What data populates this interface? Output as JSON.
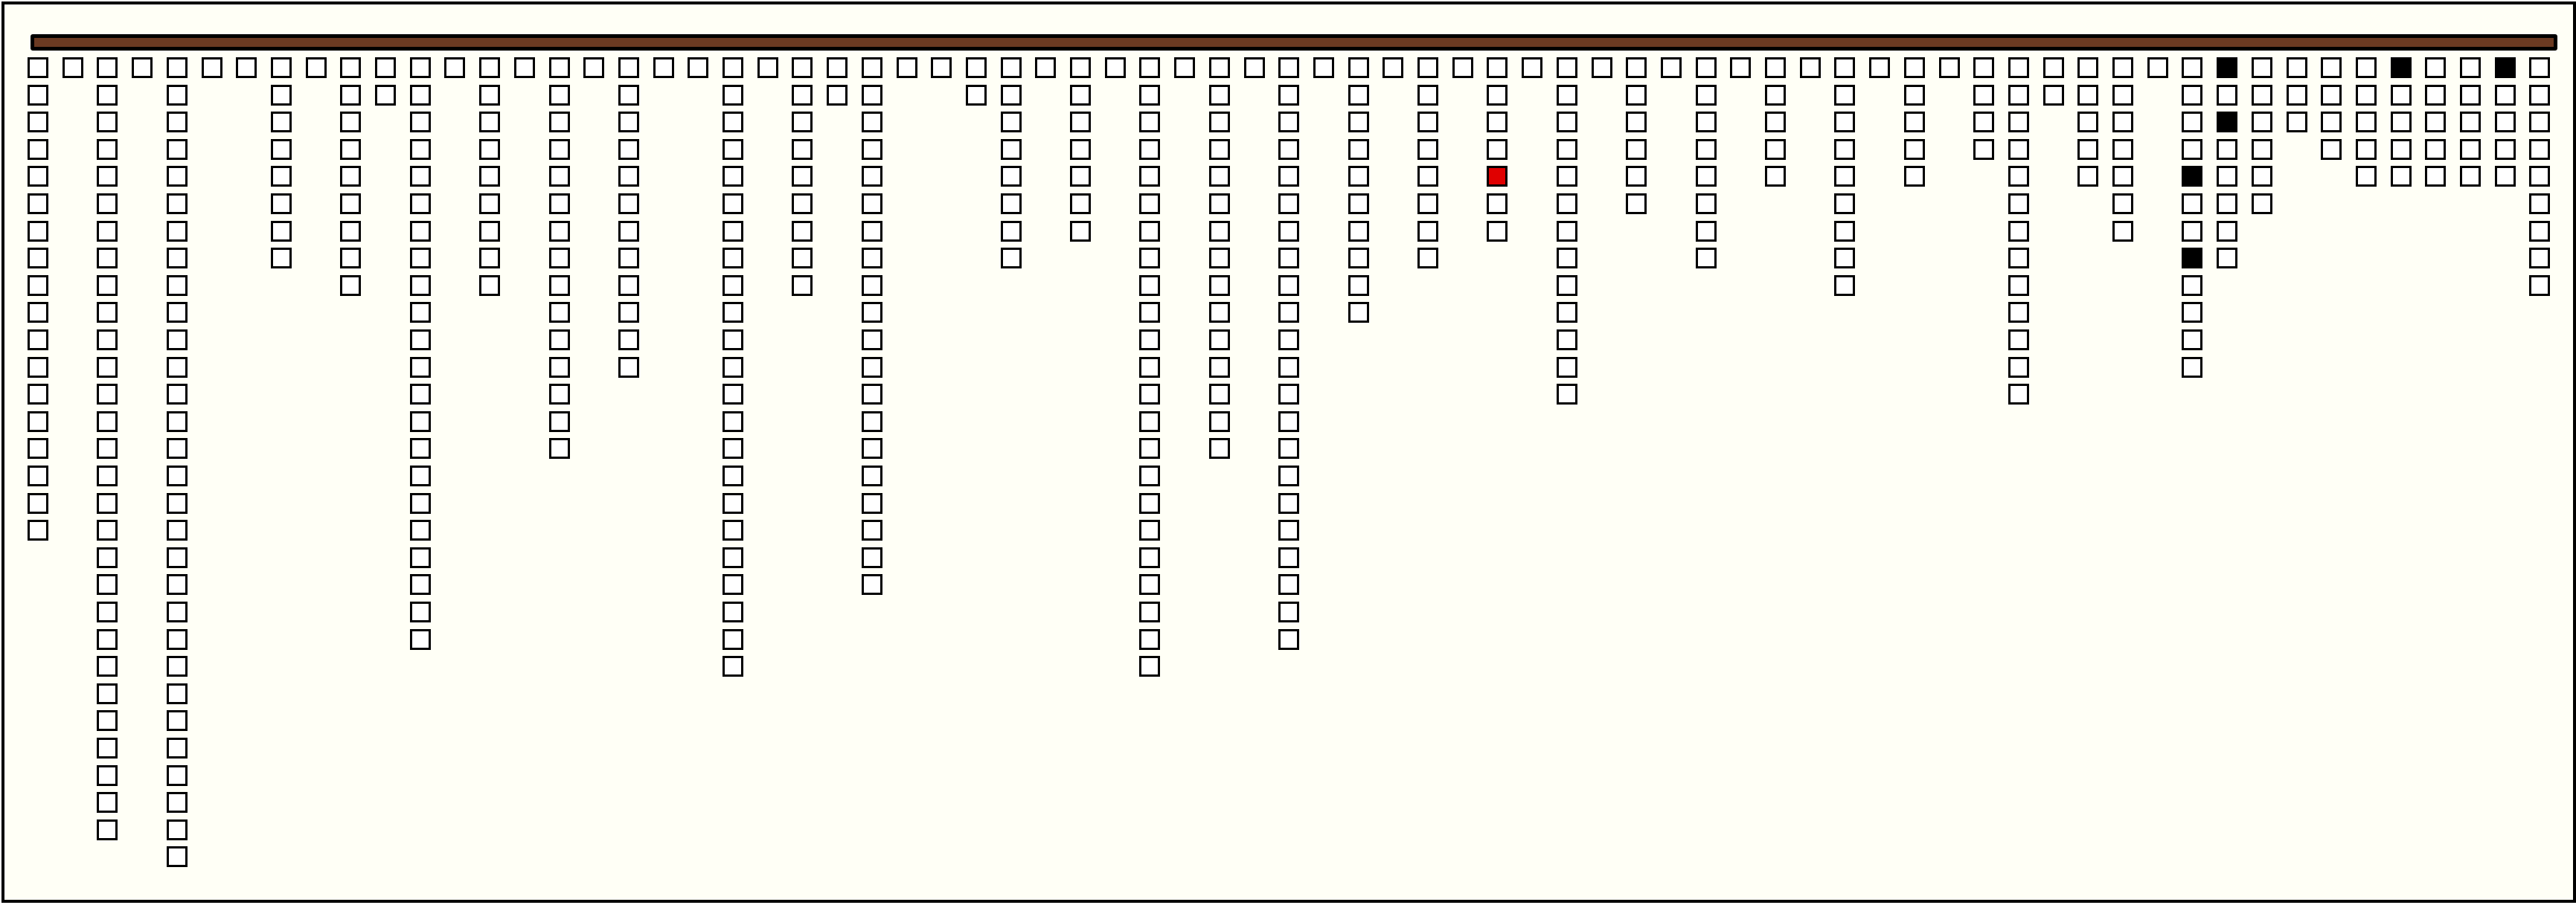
{
  "colors": {
    "background": "#fffff6",
    "bar": "#6b3a22",
    "cell_empty": "#ffffff",
    "cell_filled": "#000000",
    "cell_highlight": "#e00000"
  },
  "columns": [
    {
      "count": 18
    },
    {
      "count": 1
    },
    {
      "count": 29
    },
    {
      "count": 1
    },
    {
      "count": 30
    },
    {
      "count": 1
    },
    {
      "count": 1
    },
    {
      "count": 8
    },
    {
      "count": 1
    },
    {
      "count": 9
    },
    {
      "count": 2
    },
    {
      "count": 22
    },
    {
      "count": 1
    },
    {
      "count": 9
    },
    {
      "count": 1
    },
    {
      "count": 15
    },
    {
      "count": 1
    },
    {
      "count": 12
    },
    {
      "count": 1
    },
    {
      "count": 1
    },
    {
      "count": 23
    },
    {
      "count": 1
    },
    {
      "count": 9
    },
    {
      "count": 2
    },
    {
      "count": 20
    },
    {
      "count": 1
    },
    {
      "count": 1
    },
    {
      "count": 2
    },
    {
      "count": 8
    },
    {
      "count": 1
    },
    {
      "count": 7
    },
    {
      "count": 1
    },
    {
      "count": 23
    },
    {
      "count": 1
    },
    {
      "count": 15
    },
    {
      "count": 1
    },
    {
      "count": 22
    },
    {
      "count": 1
    },
    {
      "count": 10
    },
    {
      "count": 1
    },
    {
      "count": 8
    },
    {
      "count": 1
    },
    {
      "count": 7,
      "red": [
        5
      ]
    },
    {
      "count": 1
    },
    {
      "count": 13
    },
    {
      "count": 1
    },
    {
      "count": 6
    },
    {
      "count": 1
    },
    {
      "count": 8
    },
    {
      "count": 1
    },
    {
      "count": 5
    },
    {
      "count": 1
    },
    {
      "count": 9
    },
    {
      "count": 1
    },
    {
      "count": 5
    },
    {
      "count": 1
    },
    {
      "count": 4
    },
    {
      "count": 13
    },
    {
      "count": 2
    },
    {
      "count": 5
    },
    {
      "count": 7
    },
    {
      "count": 1
    },
    {
      "count": 12,
      "black": [
        5,
        8
      ]
    },
    {
      "count": 8,
      "black": [
        1,
        3
      ]
    },
    {
      "count": 6
    },
    {
      "count": 3
    },
    {
      "count": 4
    },
    {
      "count": 5
    },
    {
      "count": 5,
      "black": [
        1
      ]
    },
    {
      "count": 5
    },
    {
      "count": 5
    },
    {
      "count": 5,
      "black": [
        1
      ]
    },
    {
      "count": 9
    }
  ]
}
